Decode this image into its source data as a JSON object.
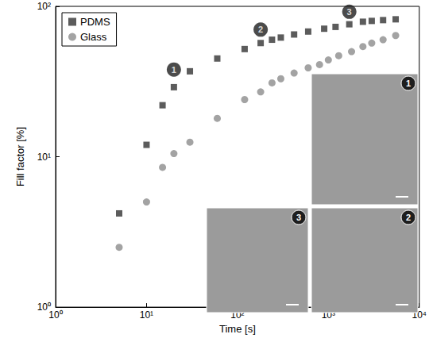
{
  "chart_data": {
    "type": "scatter",
    "log": true,
    "grid": false,
    "legend": "top-left",
    "xlabel": "Time [s]",
    "ylabel": "Fill factor [%]",
    "xlim": [
      1,
      10000
    ],
    "ylim": [
      1,
      100
    ],
    "xticks": [
      {
        "value": 1,
        "label": "10⁰"
      },
      {
        "value": 10,
        "label": "10¹"
      },
      {
        "value": 100,
        "label": "10²"
      },
      {
        "value": 1000,
        "label": "10³"
      },
      {
        "value": 10000,
        "label": "10⁴"
      }
    ],
    "yticks": [
      {
        "value": 1,
        "label": "10⁰"
      },
      {
        "value": 10,
        "label": "10¹"
      },
      {
        "value": 100,
        "label": "10²"
      }
    ],
    "series": [
      {
        "name": "PDMS",
        "color": "#333333",
        "marker": "square",
        "x": [
          5,
          10,
          15,
          20,
          30,
          60,
          120,
          180,
          240,
          300,
          420,
          600,
          900,
          1200,
          1700,
          2400,
          3000,
          4000,
          5500
        ],
        "values": [
          4.2,
          12,
          22,
          29,
          37,
          45,
          52,
          57,
          60,
          62,
          65,
          68,
          71,
          73,
          76,
          79,
          80,
          81,
          82
        ]
      },
      {
        "name": "Glass",
        "color": "#8c8c8c",
        "marker": "circle",
        "x": [
          5,
          10,
          15,
          20,
          30,
          60,
          120,
          180,
          240,
          300,
          420,
          600,
          800,
          1000,
          1300,
          1800,
          2400,
          3000,
          4000,
          5500
        ],
        "values": [
          2.5,
          5,
          8.5,
          10.5,
          12.5,
          18,
          24,
          27,
          31,
          33,
          36,
          39,
          41,
          44,
          47,
          50,
          54,
          57,
          60,
          64
        ]
      }
    ],
    "annotations": [
      {
        "label": "1",
        "x": 20,
        "y": 38
      },
      {
        "label": "2",
        "x": 180,
        "y": 70
      },
      {
        "label": "3",
        "x": 1700,
        "y": 92
      }
    ],
    "insets": [
      {
        "label": "1"
      },
      {
        "label": "2"
      },
      {
        "label": "3"
      }
    ]
  }
}
